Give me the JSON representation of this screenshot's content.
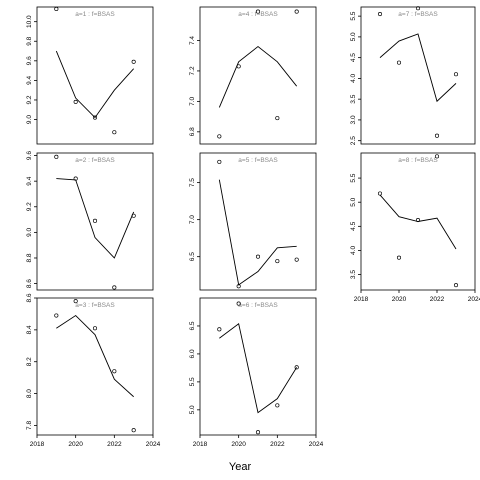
{
  "chart_data": {
    "type": "scatter",
    "xlabel": "Year",
    "x_ticks": [
      2018,
      2020,
      2022,
      2024
    ],
    "panels": [
      {
        "title": "a=1  :  f=BSAS",
        "xlim": [
          2018,
          2024
        ],
        "ylim": [
          8.75,
          10.15
        ],
        "yticks": [
          9.0,
          9.2,
          9.4,
          9.6,
          9.8,
          10.0
        ],
        "show_x_axis": false,
        "line": {
          "x": [
            2019,
            2020,
            2021,
            2022,
            2023
          ],
          "y": [
            9.7,
            9.22,
            9.02,
            9.3,
            9.52
          ]
        },
        "points": {
          "x": [
            2019,
            2020,
            2021,
            2022,
            2023
          ],
          "y": [
            10.13,
            9.18,
            9.02,
            8.87,
            9.59
          ]
        }
      },
      {
        "title": "a=2  :  f=BSAS",
        "xlim": [
          2018,
          2024
        ],
        "ylim": [
          8.55,
          9.62
        ],
        "yticks": [
          8.6,
          8.8,
          9.0,
          9.2,
          9.4,
          9.6
        ],
        "show_x_axis": false,
        "line": {
          "x": [
            2019,
            2020,
            2021,
            2022,
            2023
          ],
          "y": [
            9.42,
            9.41,
            8.96,
            8.8,
            9.16
          ]
        },
        "points": {
          "x": [
            2019,
            2020,
            2021,
            2022,
            2023
          ],
          "y": [
            9.59,
            9.42,
            9.09,
            8.57,
            9.13
          ]
        }
      },
      {
        "title": "a=3  :  f=BSAS",
        "xlim": [
          2018,
          2024
        ],
        "ylim": [
          7.74,
          8.6
        ],
        "yticks": [
          7.8,
          8.0,
          8.2,
          8.4,
          8.6
        ],
        "show_x_axis": true,
        "line": {
          "x": [
            2019,
            2020,
            2021,
            2022,
            2023
          ],
          "y": [
            8.41,
            8.49,
            8.37,
            8.09,
            7.98
          ]
        },
        "points": {
          "x": [
            2019,
            2020,
            2021,
            2022,
            2023
          ],
          "y": [
            8.49,
            8.58,
            8.41,
            8.14,
            7.77
          ]
        }
      },
      {
        "title": "a=4  :  f=BSAS",
        "xlim": [
          2018,
          2024
        ],
        "ylim": [
          6.72,
          7.62
        ],
        "yticks": [
          6.8,
          7.0,
          7.2,
          7.4
        ],
        "show_x_axis": false,
        "line": {
          "x": [
            2019,
            2020,
            2021,
            2022,
            2023
          ],
          "y": [
            6.96,
            7.26,
            7.36,
            7.26,
            7.1
          ]
        },
        "points": {
          "x": [
            2019,
            2020,
            2021,
            2022,
            2023
          ],
          "y": [
            6.77,
            7.23,
            7.59,
            6.89,
            7.59
          ]
        }
      },
      {
        "title": "a=5  :  f=BSAS",
        "xlim": [
          2018,
          2024
        ],
        "ylim": [
          6.05,
          7.9
        ],
        "yticks": [
          6.5,
          7.0,
          7.5
        ],
        "show_x_axis": false,
        "line": {
          "x": [
            2019,
            2020,
            2021,
            2022,
            2023
          ],
          "y": [
            7.54,
            6.12,
            6.3,
            6.62,
            6.64
          ]
        },
        "points": {
          "x": [
            2019,
            2020,
            2021,
            2022,
            2023
          ],
          "y": [
            7.78,
            6.1,
            6.5,
            6.44,
            6.46
          ]
        }
      },
      {
        "title": "a=6  :  f=BSAS",
        "xlim": [
          2018,
          2024
        ],
        "ylim": [
          4.55,
          7.0
        ],
        "yticks": [
          5.0,
          5.5,
          6.0,
          6.5
        ],
        "show_x_axis": true,
        "line": {
          "x": [
            2019,
            2020,
            2021,
            2022,
            2023
          ],
          "y": [
            6.28,
            6.54,
            4.95,
            5.2,
            5.76
          ]
        },
        "points": {
          "x": [
            2019,
            2020,
            2021,
            2022,
            2023
          ],
          "y": [
            6.44,
            6.9,
            4.6,
            5.08,
            5.76
          ]
        }
      },
      {
        "title": "a=7  :  f=BSAS",
        "xlim": [
          2018,
          2024
        ],
        "ylim": [
          2.42,
          5.72
        ],
        "yticks": [
          2.5,
          3.0,
          3.5,
          4.0,
          4.5,
          5.0,
          5.5
        ],
        "show_x_axis": false,
        "line": {
          "x": [
            2019,
            2020,
            2021,
            2022,
            2023
          ],
          "y": [
            4.5,
            4.9,
            5.07,
            3.45,
            3.88
          ]
        },
        "points": {
          "x": [
            2019,
            2020,
            2021,
            2022,
            2023
          ],
          "y": [
            5.55,
            4.38,
            5.69,
            2.62,
            4.1
          ]
        }
      },
      {
        "title": "a=8  :  f=BSAS",
        "xlim": [
          2018,
          2024
        ],
        "ylim": [
          3.18,
          6.02
        ],
        "yticks": [
          3.5,
          4.0,
          4.5,
          5.0,
          5.5
        ],
        "show_x_axis": true,
        "line": {
          "x": [
            2019,
            2020,
            2021,
            2022,
            2023
          ],
          "y": [
            5.15,
            4.7,
            4.6,
            4.67,
            4.03
          ]
        },
        "points": {
          "x": [
            2019,
            2020,
            2021,
            2022,
            2023
          ],
          "y": [
            5.18,
            3.85,
            4.63,
            5.95,
            3.28
          ]
        }
      }
    ]
  }
}
